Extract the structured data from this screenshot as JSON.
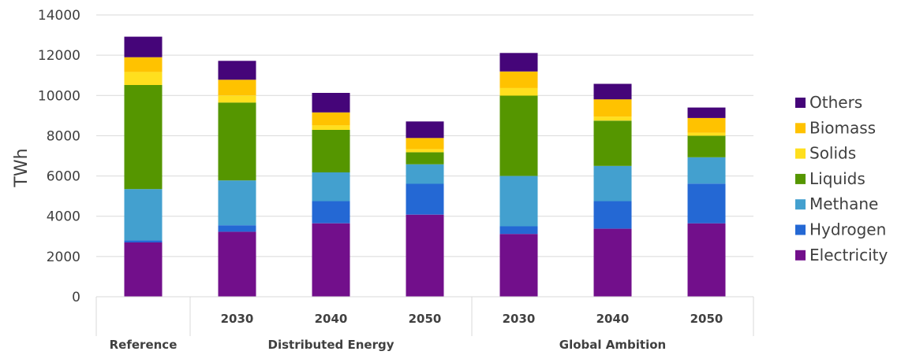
{
  "chart_data": {
    "type": "bar",
    "stacked": true,
    "ylabel": "TWh",
    "ylim": [
      0,
      14000
    ],
    "yticks": [
      "0",
      "2000",
      "4000",
      "6000",
      "8000",
      "10000",
      "12000",
      "14000"
    ],
    "grid": true,
    "legend_position": "right",
    "categories": [
      "Reference",
      "2030",
      "2040",
      "2050",
      "2030",
      "2040",
      "2050"
    ],
    "groups": [
      {
        "label": "Reference",
        "span": 1
      },
      {
        "label": "Distributed Energy",
        "span": 3
      },
      {
        "label": "Global Ambition",
        "span": 3
      }
    ],
    "series": [
      {
        "name": "Electricity",
        "color": "#720F8B",
        "values": [
          2700,
          3230,
          3650,
          4080,
          3120,
          3380,
          3650
        ]
      },
      {
        "name": "Hydrogen",
        "color": "#2468D4",
        "values": [
          100,
          320,
          1100,
          1530,
          380,
          1370,
          1970
        ]
      },
      {
        "name": "Methane",
        "color": "#43A0CF",
        "values": [
          2550,
          2230,
          1430,
          970,
          2500,
          1750,
          1310
        ]
      },
      {
        "name": "Liquids",
        "color": "#559600",
        "values": [
          5170,
          3870,
          2110,
          600,
          3990,
          2250,
          1070
        ]
      },
      {
        "name": "Solids",
        "color": "#FFDF1E",
        "values": [
          650,
          350,
          230,
          150,
          380,
          200,
          150
        ]
      },
      {
        "name": "Biomass",
        "color": "#FFC200",
        "values": [
          730,
          780,
          640,
          560,
          820,
          860,
          730
        ]
      },
      {
        "name": "Others",
        "color": "#450579",
        "values": [
          1020,
          940,
          970,
          820,
          920,
          770,
          520
        ]
      }
    ]
  }
}
